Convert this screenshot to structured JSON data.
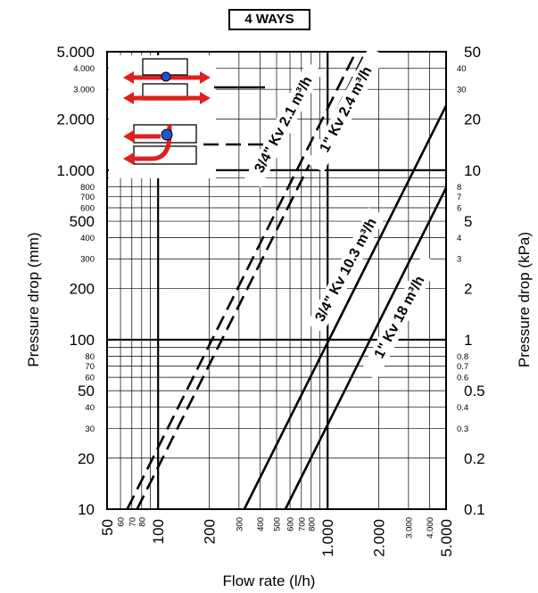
{
  "chart_data": {
    "type": "line",
    "title": "4 WAYS",
    "xlabel": "Flow rate  (l/h)",
    "ylabel_left": "Pressure drop  (mm)",
    "ylabel_right": "Pressure drop  (kPa)",
    "x_scale": "log",
    "y_scale": "log",
    "xlim": [
      50,
      5000
    ],
    "ylim": [
      10,
      5000
    ],
    "x_ticks_major": [
      "50",
      "100",
      "200",
      "1.000",
      "2.000",
      "5.000"
    ],
    "x_ticks_minor": [
      "60",
      "70",
      "80",
      "300",
      "400",
      "500",
      "600",
      "700",
      "800",
      "3.000",
      "4.000"
    ],
    "y_left_ticks_major": [
      "10",
      "20",
      "50",
      "100",
      "200",
      "500",
      "1.000",
      "2.000",
      "5.000"
    ],
    "y_left_ticks_minor": [
      "30",
      "40",
      "60",
      "70",
      "80",
      "300",
      "400",
      "600",
      "700",
      "800",
      "3.000",
      "4.000"
    ],
    "y_right_ticks_major": [
      "0.1",
      "0.2",
      "0.5",
      "1",
      "2",
      "5",
      "10",
      "20",
      "50"
    ],
    "y_right_ticks_minor": [
      "0.3",
      "0.4",
      "0.6",
      "0.7",
      "0.8",
      "3",
      "4",
      "6",
      "7",
      "8",
      "30",
      "40"
    ],
    "series": [
      {
        "name": "3/4\"  Kv 2.1 m³/h",
        "style": "dashed",
        "kv": 2.1
      },
      {
        "name": "1\"  Kv 2.4 m³/h",
        "style": "dashed",
        "kv": 2.4
      },
      {
        "name": "3/4\"  Kv 10.3 m³/h",
        "style": "solid",
        "kv": 10.3
      },
      {
        "name": "1\"  Kv 18 m³/h",
        "style": "solid",
        "kv": 18
      }
    ],
    "grid": true,
    "legend": "top-left",
    "colors": {
      "line": "#000000",
      "arrow": "#e02020",
      "valve_blue": "#2255cc"
    }
  }
}
